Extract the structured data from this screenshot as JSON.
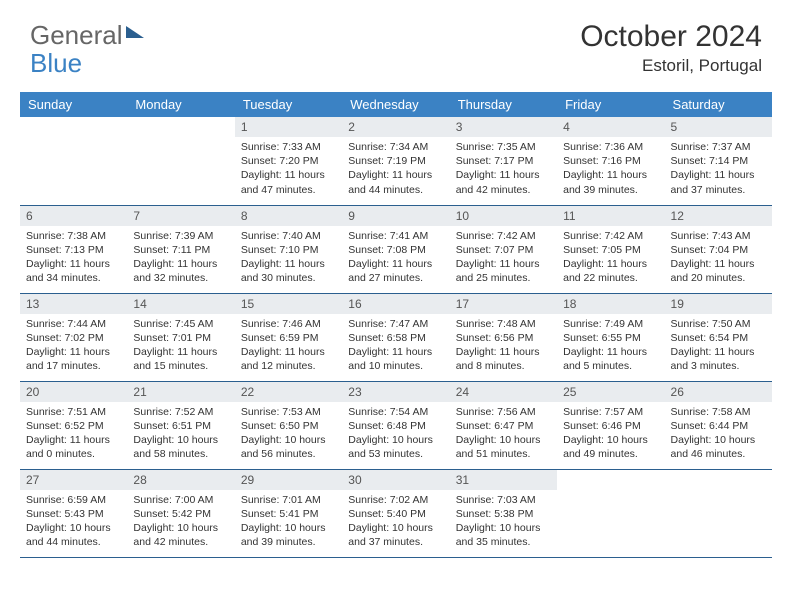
{
  "brand": {
    "part1": "General",
    "part2": "Blue"
  },
  "title": "October 2024",
  "location": "Estoril, Portugal",
  "colors": {
    "header_bg": "#3b82c4",
    "border": "#2b5f8f",
    "daynum_bg": "#e9ecef",
    "text": "#333333",
    "muted": "#555555"
  },
  "weekdays": [
    "Sunday",
    "Monday",
    "Tuesday",
    "Wednesday",
    "Thursday",
    "Friday",
    "Saturday"
  ],
  "weeks": [
    [
      null,
      null,
      {
        "n": "1",
        "sr": "Sunrise: 7:33 AM",
        "ss": "Sunset: 7:20 PM",
        "dl": "Daylight: 11 hours and 47 minutes."
      },
      {
        "n": "2",
        "sr": "Sunrise: 7:34 AM",
        "ss": "Sunset: 7:19 PM",
        "dl": "Daylight: 11 hours and 44 minutes."
      },
      {
        "n": "3",
        "sr": "Sunrise: 7:35 AM",
        "ss": "Sunset: 7:17 PM",
        "dl": "Daylight: 11 hours and 42 minutes."
      },
      {
        "n": "4",
        "sr": "Sunrise: 7:36 AM",
        "ss": "Sunset: 7:16 PM",
        "dl": "Daylight: 11 hours and 39 minutes."
      },
      {
        "n": "5",
        "sr": "Sunrise: 7:37 AM",
        "ss": "Sunset: 7:14 PM",
        "dl": "Daylight: 11 hours and 37 minutes."
      }
    ],
    [
      {
        "n": "6",
        "sr": "Sunrise: 7:38 AM",
        "ss": "Sunset: 7:13 PM",
        "dl": "Daylight: 11 hours and 34 minutes."
      },
      {
        "n": "7",
        "sr": "Sunrise: 7:39 AM",
        "ss": "Sunset: 7:11 PM",
        "dl": "Daylight: 11 hours and 32 minutes."
      },
      {
        "n": "8",
        "sr": "Sunrise: 7:40 AM",
        "ss": "Sunset: 7:10 PM",
        "dl": "Daylight: 11 hours and 30 minutes."
      },
      {
        "n": "9",
        "sr": "Sunrise: 7:41 AM",
        "ss": "Sunset: 7:08 PM",
        "dl": "Daylight: 11 hours and 27 minutes."
      },
      {
        "n": "10",
        "sr": "Sunrise: 7:42 AM",
        "ss": "Sunset: 7:07 PM",
        "dl": "Daylight: 11 hours and 25 minutes."
      },
      {
        "n": "11",
        "sr": "Sunrise: 7:42 AM",
        "ss": "Sunset: 7:05 PM",
        "dl": "Daylight: 11 hours and 22 minutes."
      },
      {
        "n": "12",
        "sr": "Sunrise: 7:43 AM",
        "ss": "Sunset: 7:04 PM",
        "dl": "Daylight: 11 hours and 20 minutes."
      }
    ],
    [
      {
        "n": "13",
        "sr": "Sunrise: 7:44 AM",
        "ss": "Sunset: 7:02 PM",
        "dl": "Daylight: 11 hours and 17 minutes."
      },
      {
        "n": "14",
        "sr": "Sunrise: 7:45 AM",
        "ss": "Sunset: 7:01 PM",
        "dl": "Daylight: 11 hours and 15 minutes."
      },
      {
        "n": "15",
        "sr": "Sunrise: 7:46 AM",
        "ss": "Sunset: 6:59 PM",
        "dl": "Daylight: 11 hours and 12 minutes."
      },
      {
        "n": "16",
        "sr": "Sunrise: 7:47 AM",
        "ss": "Sunset: 6:58 PM",
        "dl": "Daylight: 11 hours and 10 minutes."
      },
      {
        "n": "17",
        "sr": "Sunrise: 7:48 AM",
        "ss": "Sunset: 6:56 PM",
        "dl": "Daylight: 11 hours and 8 minutes."
      },
      {
        "n": "18",
        "sr": "Sunrise: 7:49 AM",
        "ss": "Sunset: 6:55 PM",
        "dl": "Daylight: 11 hours and 5 minutes."
      },
      {
        "n": "19",
        "sr": "Sunrise: 7:50 AM",
        "ss": "Sunset: 6:54 PM",
        "dl": "Daylight: 11 hours and 3 minutes."
      }
    ],
    [
      {
        "n": "20",
        "sr": "Sunrise: 7:51 AM",
        "ss": "Sunset: 6:52 PM",
        "dl": "Daylight: 11 hours and 0 minutes."
      },
      {
        "n": "21",
        "sr": "Sunrise: 7:52 AM",
        "ss": "Sunset: 6:51 PM",
        "dl": "Daylight: 10 hours and 58 minutes."
      },
      {
        "n": "22",
        "sr": "Sunrise: 7:53 AM",
        "ss": "Sunset: 6:50 PM",
        "dl": "Daylight: 10 hours and 56 minutes."
      },
      {
        "n": "23",
        "sr": "Sunrise: 7:54 AM",
        "ss": "Sunset: 6:48 PM",
        "dl": "Daylight: 10 hours and 53 minutes."
      },
      {
        "n": "24",
        "sr": "Sunrise: 7:56 AM",
        "ss": "Sunset: 6:47 PM",
        "dl": "Daylight: 10 hours and 51 minutes."
      },
      {
        "n": "25",
        "sr": "Sunrise: 7:57 AM",
        "ss": "Sunset: 6:46 PM",
        "dl": "Daylight: 10 hours and 49 minutes."
      },
      {
        "n": "26",
        "sr": "Sunrise: 7:58 AM",
        "ss": "Sunset: 6:44 PM",
        "dl": "Daylight: 10 hours and 46 minutes."
      }
    ],
    [
      {
        "n": "27",
        "sr": "Sunrise: 6:59 AM",
        "ss": "Sunset: 5:43 PM",
        "dl": "Daylight: 10 hours and 44 minutes."
      },
      {
        "n": "28",
        "sr": "Sunrise: 7:00 AM",
        "ss": "Sunset: 5:42 PM",
        "dl": "Daylight: 10 hours and 42 minutes."
      },
      {
        "n": "29",
        "sr": "Sunrise: 7:01 AM",
        "ss": "Sunset: 5:41 PM",
        "dl": "Daylight: 10 hours and 39 minutes."
      },
      {
        "n": "30",
        "sr": "Sunrise: 7:02 AM",
        "ss": "Sunset: 5:40 PM",
        "dl": "Daylight: 10 hours and 37 minutes."
      },
      {
        "n": "31",
        "sr": "Sunrise: 7:03 AM",
        "ss": "Sunset: 5:38 PM",
        "dl": "Daylight: 10 hours and 35 minutes."
      },
      null,
      null
    ]
  ]
}
